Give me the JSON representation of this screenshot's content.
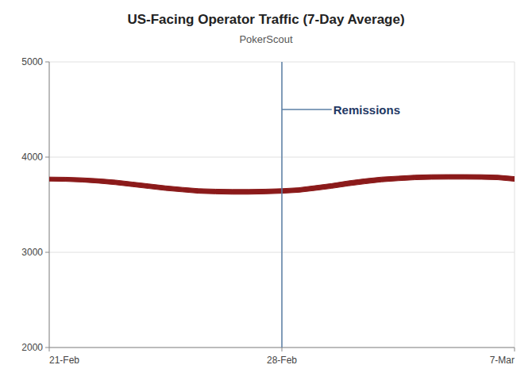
{
  "chart_data": {
    "type": "band",
    "title": "US-Facing Operator Traffic (7-Day Average)",
    "subtitle": "PokerScout",
    "color": "#8B1A1A",
    "x": [
      0,
      0.5,
      1,
      1.5,
      2,
      2.5,
      3,
      3.5,
      4,
      4.5,
      5,
      5.5,
      6,
      6.5,
      7,
      7.5,
      8,
      8.5,
      9,
      9.5,
      10,
      10.5,
      11,
      11.5,
      12,
      12.5,
      13,
      13.5,
      14
    ],
    "upper": [
      3790,
      3788,
      3782,
      3772,
      3758,
      3738,
      3718,
      3698,
      3682,
      3668,
      3663,
      3660,
      3660,
      3663,
      3668,
      3678,
      3700,
      3722,
      3750,
      3772,
      3790,
      3800,
      3810,
      3815,
      3816,
      3816,
      3815,
      3810,
      3795
    ],
    "lower": [
      3748,
      3745,
      3738,
      3726,
      3710,
      3690,
      3670,
      3650,
      3635,
      3620,
      3614,
      3610,
      3610,
      3614,
      3620,
      3630,
      3650,
      3672,
      3698,
      3720,
      3740,
      3752,
      3762,
      3767,
      3768,
      3768,
      3767,
      3762,
      3746
    ],
    "xlim": [
      0,
      14
    ],
    "xticks": [
      {
        "value": 0,
        "label": "21-Feb"
      },
      {
        "value": 7,
        "label": "28-Feb"
      },
      {
        "value": 14,
        "label": "7-Mar"
      }
    ],
    "ylim": [
      2000,
      5000
    ],
    "yticks": [
      2000,
      3000,
      4000,
      5000
    ],
    "grid": true,
    "vline": {
      "x": 7,
      "color": "#5B7FA6"
    },
    "annotations": [
      {
        "text": "Remissions",
        "x": 8.5,
        "y": 4500,
        "target_x": 7,
        "target_y": 4500,
        "color": "#1F3864"
      }
    ]
  }
}
